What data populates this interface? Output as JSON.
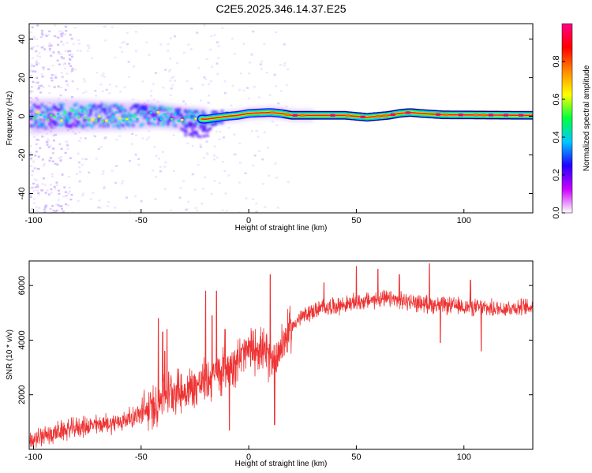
{
  "title": "C2E5.2025.346.14.37.E25",
  "chart_data": [
    {
      "type": "heatmap",
      "title": "",
      "xlabel": "Height of straight line (km)",
      "ylabel": "Frequency (Hz)",
      "xlim": [
        -102,
        132
      ],
      "ylim": [
        -50,
        48
      ],
      "xticks": [
        -100,
        -50,
        0,
        50,
        100
      ],
      "xtick_labels": [
        "-100",
        "-50",
        "0",
        "50",
        "100"
      ],
      "yticks": [
        -40,
        -20,
        0,
        20,
        40
      ],
      "ytick_labels": [
        "-40",
        "-20",
        "0",
        "20",
        "40"
      ],
      "colorbar": {
        "label": "Normalized spectral amplitude",
        "range": [
          0.0,
          1.0
        ],
        "ticks": [
          0.0,
          0.2,
          0.4,
          0.6,
          0.8
        ],
        "tick_labels": [
          "0.0",
          "0.2",
          "0.4",
          "0.6",
          "0.8"
        ],
        "colormap": [
          "#ffffff",
          "#cc00ff",
          "#2200ff",
          "#00c8ff",
          "#00ff40",
          "#ffff00",
          "#ff8800",
          "#ff0000",
          "#ff0088"
        ]
      },
      "ridge_points": [
        [
          -100,
          0.0
        ],
        [
          -80,
          0.5
        ],
        [
          -60,
          0.0
        ],
        [
          -45,
          0.5
        ],
        [
          -30,
          -1.0
        ],
        [
          -20,
          -1.5
        ],
        [
          -10,
          0.0
        ],
        [
          -5,
          0.5
        ],
        [
          0,
          1.5
        ],
        [
          10,
          2.0
        ],
        [
          15,
          1.5
        ],
        [
          20,
          0.5
        ],
        [
          45,
          0.5
        ],
        [
          50,
          0.0
        ],
        [
          55,
          -0.5
        ],
        [
          60,
          0.0
        ],
        [
          65,
          0.5
        ],
        [
          70,
          1.5
        ],
        [
          75,
          2.0
        ],
        [
          80,
          1.5
        ],
        [
          90,
          0.8
        ],
        [
          132,
          0.5
        ]
      ]
    },
    {
      "type": "line",
      "title": "",
      "xlabel": "Height of straight line (km)",
      "ylabel": "SNR (10 * v/v)",
      "xlim": [
        -102,
        132
      ],
      "ylim": [
        0,
        6900
      ],
      "xticks": [
        -100,
        -50,
        0,
        50,
        100
      ],
      "xtick_labels": [
        "-100",
        "-50",
        "0",
        "50",
        "100"
      ],
      "yticks": [
        2000,
        4000,
        6000
      ],
      "ytick_labels": [
        "2000",
        "4000",
        "6000"
      ],
      "line_color": "#ee3333",
      "trend": [
        [
          -102,
          300
        ],
        [
          -90,
          600
        ],
        [
          -80,
          800
        ],
        [
          -70,
          900
        ],
        [
          -60,
          1000
        ],
        [
          -50,
          1300
        ],
        [
          -45,
          1500
        ],
        [
          -40,
          1900
        ],
        [
          -35,
          2200
        ],
        [
          -30,
          2100
        ],
        [
          -25,
          2300
        ],
        [
          -20,
          2500
        ],
        [
          -15,
          2700
        ],
        [
          -10,
          3000
        ],
        [
          -5,
          3300
        ],
        [
          0,
          3600
        ],
        [
          5,
          3700
        ],
        [
          10,
          3300
        ],
        [
          13,
          3500
        ],
        [
          18,
          4200
        ],
        [
          22,
          4700
        ],
        [
          28,
          5000
        ],
        [
          35,
          5200
        ],
        [
          45,
          5300
        ],
        [
          55,
          5450
        ],
        [
          65,
          5500
        ],
        [
          75,
          5400
        ],
        [
          85,
          5300
        ],
        [
          95,
          5250
        ],
        [
          105,
          5200
        ],
        [
          115,
          5150
        ],
        [
          125,
          5200
        ],
        [
          132,
          5200
        ]
      ],
      "spikes": [
        [
          -42,
          4800
        ],
        [
          -40,
          4300
        ],
        [
          -39,
          3600
        ],
        [
          -38,
          4400
        ],
        [
          -20,
          5800
        ],
        [
          -17,
          4900
        ],
        [
          -15,
          5800
        ],
        [
          -11,
          4400
        ],
        [
          -9,
          700
        ],
        [
          4,
          3900
        ],
        [
          10,
          6400
        ],
        [
          12,
          900
        ],
        [
          19,
          5000
        ],
        [
          35,
          6100
        ],
        [
          50,
          6700
        ],
        [
          60,
          6600
        ],
        [
          70,
          6400
        ],
        [
          84,
          6800
        ],
        [
          89,
          3900
        ],
        [
          103,
          6200
        ],
        [
          108,
          3600
        ]
      ]
    }
  ]
}
